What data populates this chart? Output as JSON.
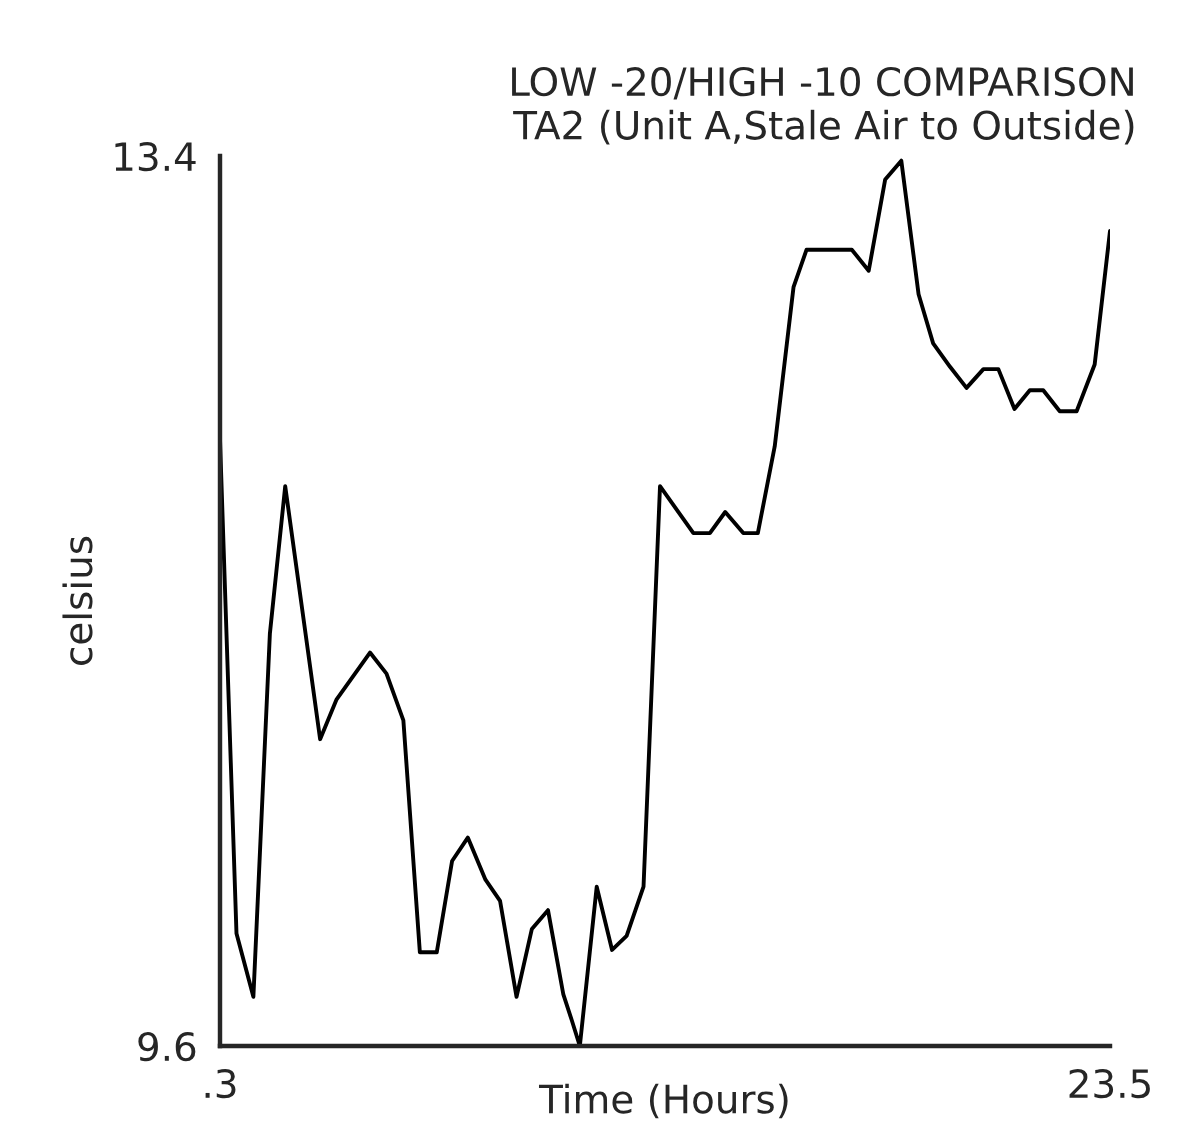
{
  "chart_data": {
    "type": "line",
    "title": "LOW -20/HIGH -10 COMPARISON\nTA2 (Unit A,Stale Air to Outside)",
    "xlabel": "Time (Hours)",
    "ylabel": "celsius",
    "xlim": [
      0.3,
      23.5
    ],
    "ylim": [
      9.6,
      13.4
    ],
    "xticks": [
      {
        "value": 0.3,
        "label": ".3"
      },
      23.5
    ],
    "yticks": [
      9.6,
      13.4
    ],
    "grid": false,
    "legend": false,
    "marker": "none",
    "line_style": "solid",
    "series": [
      {
        "color": "#000000",
        "x": [
          0.3,
          0.73,
          1.17,
          1.6,
          2.0,
          2.91,
          3.34,
          4.21,
          4.64,
          5.08,
          5.51,
          5.95,
          6.35,
          6.76,
          7.22,
          7.6,
          8.03,
          8.43,
          8.85,
          9.25,
          9.47,
          9.68,
          10.12,
          10.52,
          10.9,
          11.34,
          11.77,
          12.64,
          13.07,
          13.47,
          13.94,
          14.32,
          14.76,
          15.25,
          15.59,
          16.77,
          17.21,
          17.64,
          18.06,
          18.51,
          18.89,
          19.33,
          19.76,
          20.2,
          20.59,
          21.01,
          21.41,
          21.76,
          22.19,
          22.63,
          23.1,
          23.5
        ],
        "values": [
          12.19,
          10.08,
          9.81,
          11.36,
          11.99,
          10.91,
          11.08,
          11.28,
          11.19,
          10.99,
          10.0,
          10.0,
          10.39,
          10.49,
          10.31,
          10.22,
          9.81,
          10.1,
          10.18,
          9.82,
          9.71,
          9.6,
          10.28,
          10.01,
          10.07,
          10.28,
          11.99,
          11.79,
          11.79,
          11.88,
          11.79,
          11.79,
          12.16,
          12.84,
          13.0,
          13.0,
          12.91,
          13.3,
          13.38,
          12.81,
          12.6,
          12.5,
          12.41,
          12.49,
          12.49,
          12.32,
          12.4,
          12.4,
          12.31,
          12.31,
          12.51,
          13.08
        ]
      }
    ]
  }
}
